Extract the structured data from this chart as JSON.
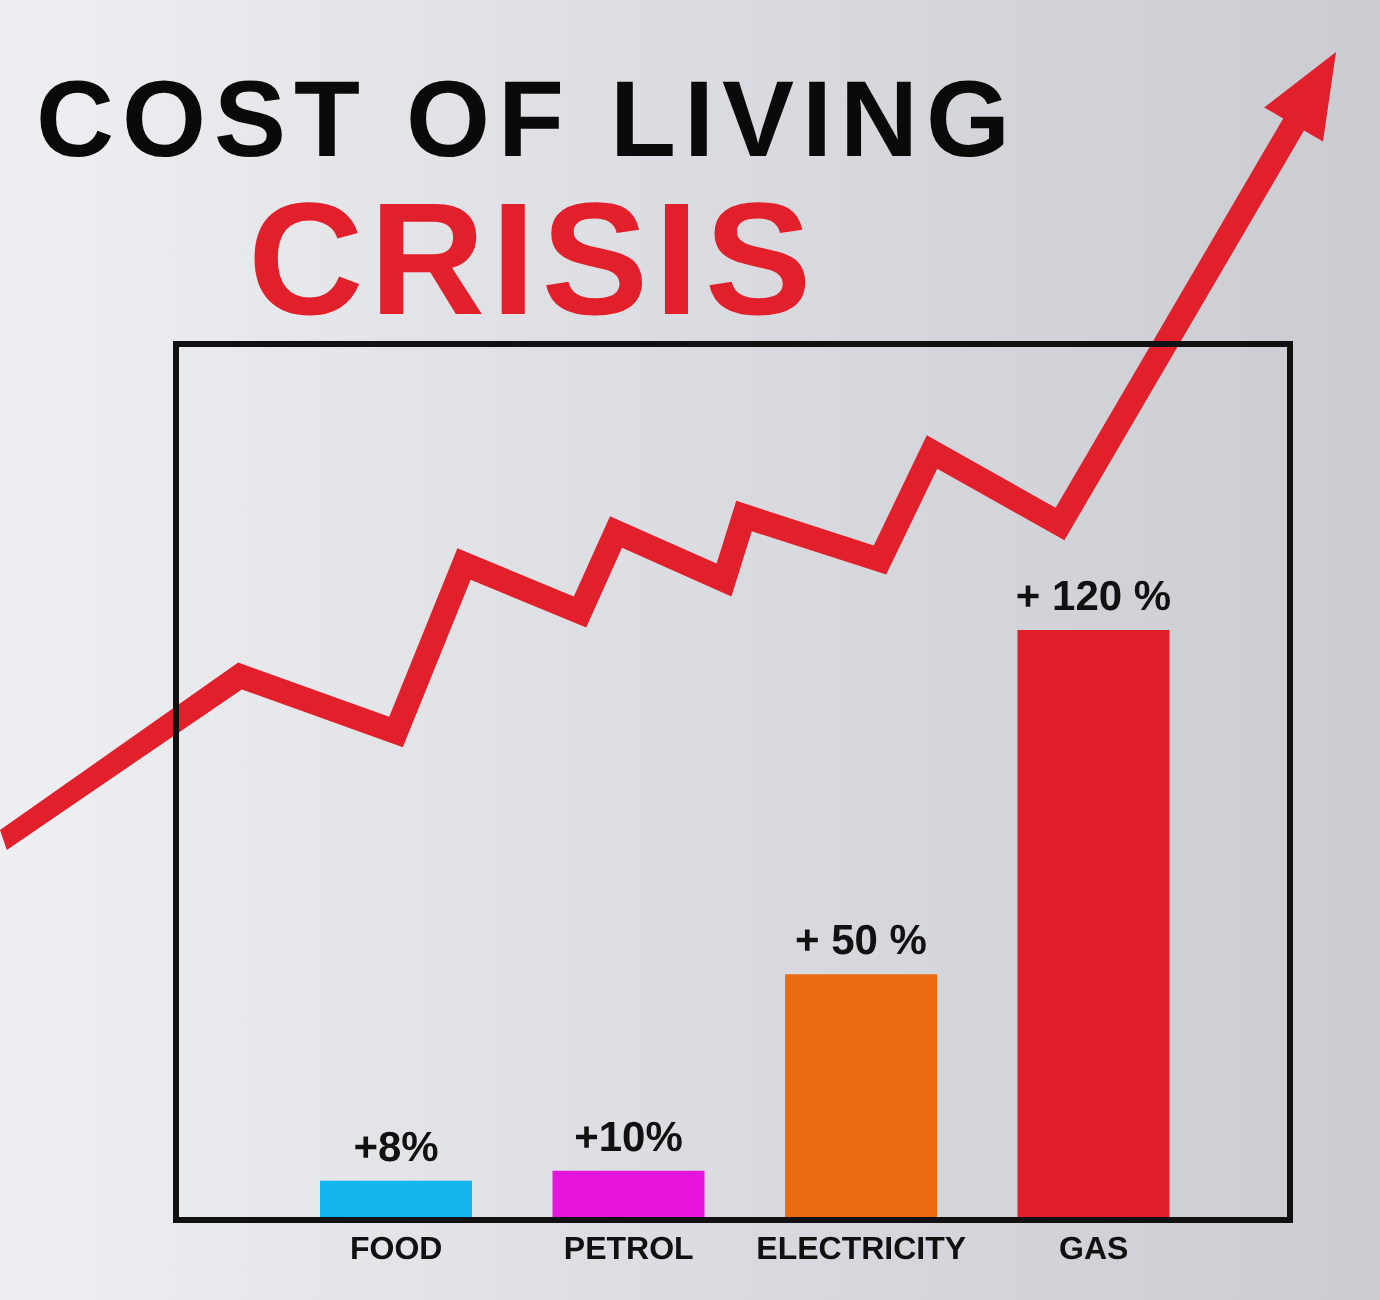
{
  "chart_data": {
    "type": "bar",
    "title": "COST OF LIVING",
    "subtitle": "CRISIS",
    "categories": [
      "FOOD",
      "PETROL",
      "ELECTRICITY",
      "GAS"
    ],
    "values": [
      8,
      10,
      50,
      120
    ],
    "colors": [
      "#14b6ee",
      "#e614dc",
      "#ec6a12",
      "#e01f2a"
    ],
    "value_labels": [
      "+8%",
      "+10%",
      "+ 50 %",
      "+ 120 %"
    ]
  }
}
